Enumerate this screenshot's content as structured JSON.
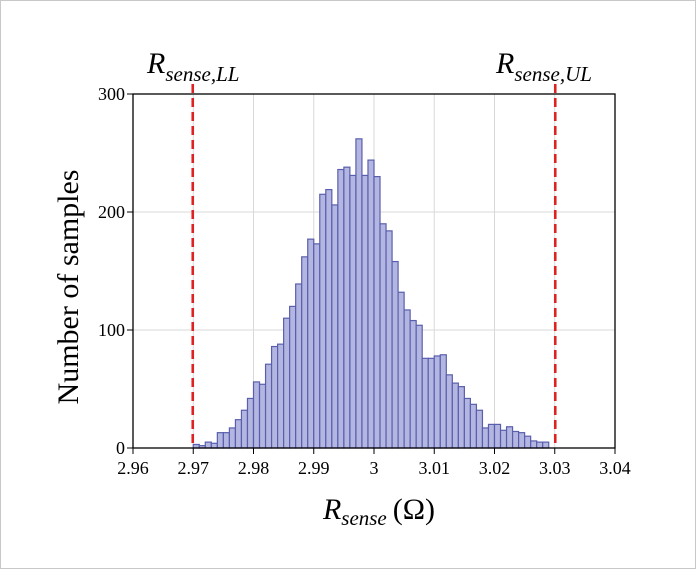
{
  "chart_data": {
    "type": "bar",
    "title": "",
    "xlabel": {
      "symbol": "R",
      "subscript": "sense",
      "unit": "(Ω)"
    },
    "ylabel": "Number of samples",
    "xlim": [
      2.96,
      3.04
    ],
    "ylim": [
      0,
      300
    ],
    "xticks": [
      "2.96",
      "2.97",
      "2.98",
      "2.99",
      "3",
      "3.01",
      "3.02",
      "3.03",
      "3.04"
    ],
    "yticks": [
      "0",
      "100",
      "200",
      "300"
    ],
    "grid": true,
    "bin_start": 2.97,
    "bin_width": 0.001,
    "bin_centers": [
      2.9705,
      2.9715,
      2.9725,
      2.9735,
      2.9745,
      2.9755,
      2.9765,
      2.9775,
      2.9785,
      2.9795,
      2.9805,
      2.9815,
      2.9825,
      2.9835,
      2.9845,
      2.9855,
      2.9865,
      2.9875,
      2.9885,
      2.9895,
      2.9905,
      2.9915,
      2.9925,
      2.9935,
      2.9945,
      2.9955,
      2.9965,
      2.9975,
      2.9985,
      2.9995,
      3.0005,
      3.0015,
      3.0025,
      3.0035,
      3.0045,
      3.0055,
      3.0065,
      3.0075,
      3.0085,
      3.0095,
      3.0105,
      3.0115,
      3.0125,
      3.0135,
      3.0145,
      3.0155,
      3.0165,
      3.0175,
      3.0185,
      3.0195,
      3.0205,
      3.0215,
      3.0225,
      3.0235,
      3.0245,
      3.0255,
      3.0265,
      3.0275,
      3.0285
    ],
    "values": [
      3,
      2,
      5,
      4,
      13,
      13,
      17,
      24,
      32,
      42,
      56,
      54,
      71,
      86,
      88,
      110,
      120,
      139,
      162,
      177,
      173,
      215,
      219,
      206,
      236,
      238,
      231,
      262,
      231,
      244,
      230,
      190,
      184,
      158,
      132,
      117,
      108,
      104,
      76,
      76,
      78,
      79,
      62,
      55,
      52,
      42,
      37,
      32,
      17,
      20,
      20,
      15,
      18,
      14,
      13,
      10,
      6,
      5,
      5
    ],
    "limits": [
      {
        "value": 2.97,
        "symbol": "R",
        "subscript": "sense,LL"
      },
      {
        "value": 3.03,
        "symbol": "R",
        "subscript": "sense,UL"
      }
    ],
    "colors": {
      "bar_fill": "#b3b6e0",
      "bar_stroke": "#5a5fad",
      "limit_line": "#dd2222",
      "grid": "#d9d9d9"
    }
  }
}
